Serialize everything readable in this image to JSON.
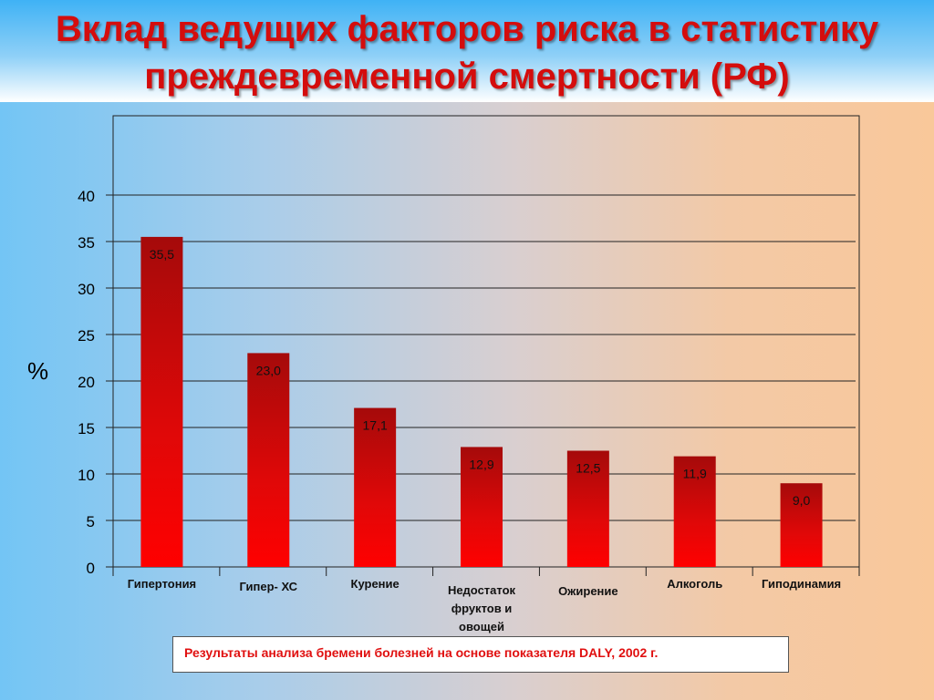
{
  "title": {
    "line1": "Вклад ведущих факторов риска в статистику",
    "line2": "преждевременной смертности (РФ)"
  },
  "source": "Результаты анализа бремени болезней на основе показателя DALY, 2002 г.",
  "colors": {
    "title": "#d40d0d",
    "bar_top": "#a50a0a",
    "bar_bottom": "#ff0000",
    "source_text": "#e01010"
  },
  "chart_data": {
    "type": "bar",
    "ylabel": "%",
    "ylim": [
      0,
      40
    ],
    "yticks": [
      "0",
      "5",
      "10",
      "15",
      "20",
      "25",
      "30",
      "35",
      "40"
    ],
    "grid": true,
    "categories": [
      [
        "Гипертония"
      ],
      [
        "Гипер- ХС"
      ],
      [
        "Курение"
      ],
      [
        "Недостаток",
        "фруктов и",
        "овощей"
      ],
      [
        "Ожирение"
      ],
      [
        "Алкоголь"
      ],
      [
        "Гиподинамия"
      ]
    ],
    "values": [
      35.5,
      23.0,
      17.1,
      12.9,
      12.5,
      11.9,
      9.0
    ],
    "value_labels": [
      "35,5",
      "23,0",
      "17,1",
      "12,9",
      "12,5",
      "11,9",
      "9,0"
    ]
  }
}
